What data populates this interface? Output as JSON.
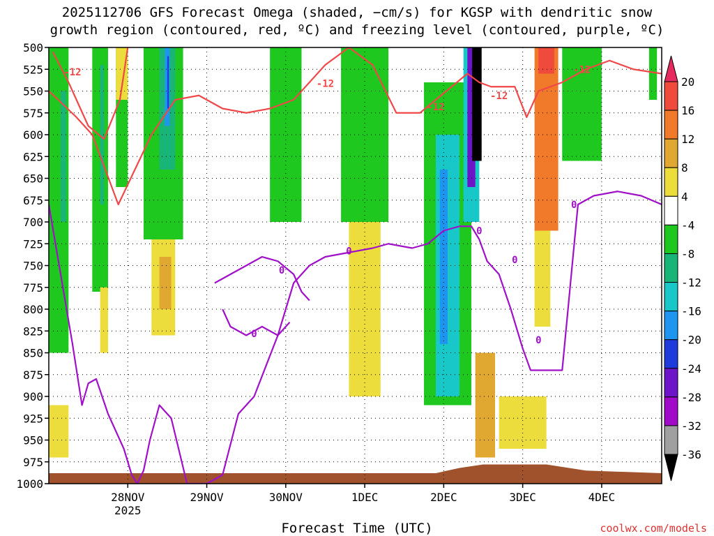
{
  "title_line1": "2025112706 GFS Forecast Omega (shaded, −cm/s) for KGSP with dendritic snow",
  "title_line2": "growth region (contoured, red, ºC) and freezing level (contoured, purple, ºC)",
  "xlabel": "Forecast Time (UTC)",
  "credit": "coolwx.com/models",
  "chart_data": {
    "type": "heatmap",
    "title": "2025112706 GFS Forecast Omega (shaded, −cm/s) for KGSP with dendritic snow growth region (contoured, red, ºC) and freezing level (contoured, purple, ºC)",
    "xlabel": "Forecast Time (UTC)",
    "ylabel": "",
    "y_axis": {
      "ticks": [
        500,
        525,
        550,
        575,
        600,
        625,
        650,
        675,
        700,
        725,
        750,
        775,
        800,
        825,
        850,
        875,
        900,
        925,
        950,
        975,
        1000
      ],
      "range": [
        500,
        1000
      ],
      "inverted": true
    },
    "x_axis": {
      "ticks": [
        {
          "label": "28NOV",
          "sublabel": "2025",
          "x": 1.0
        },
        {
          "label": "29NOV",
          "x": 2.0
        },
        {
          "label": "30NOV",
          "x": 3.0
        },
        {
          "label": "1DEC",
          "x": 4.0
        },
        {
          "label": "2DEC",
          "x": 5.0
        },
        {
          "label": "3DEC",
          "x": 6.0
        },
        {
          "label": "4DEC",
          "x": 7.0
        }
      ],
      "range": [
        0.0,
        7.76
      ]
    },
    "grid": true,
    "colorbar": {
      "labels": [
        "20",
        "16",
        "12",
        "8",
        "4",
        "-4",
        "-8",
        "-12",
        "-16",
        "-20",
        "-24",
        "-28",
        "-32",
        "-36"
      ],
      "colors": [
        "#e62a60",
        "#f04a3c",
        "#f07a2a",
        "#e0a830",
        "#ecdc3c",
        "#ffffff",
        "#1ec81e",
        "#18b478",
        "#18c8c8",
        "#1e96f0",
        "#1e3cdc",
        "#6e14c8",
        "#a00ac8",
        "#a0a0a0",
        "#000000"
      ]
    },
    "omega_regions": [
      {
        "x": [
          0.0,
          0.25
        ],
        "p": [
          500,
          850
        ],
        "value": -6
      },
      {
        "x": [
          0.15,
          0.22
        ],
        "p": [
          550,
          700
        ],
        "value": -10
      },
      {
        "x": [
          0.55,
          0.75
        ],
        "p": [
          500,
          780
        ],
        "value": -6
      },
      {
        "x": [
          0.65,
          0.7
        ],
        "p": [
          520,
          680
        ],
        "value": -10
      },
      {
        "x": [
          0.85,
          1.0
        ],
        "p": [
          500,
          660
        ],
        "value": -6
      },
      {
        "x": [
          1.2,
          1.7
        ],
        "p": [
          500,
          720
        ],
        "value": -6
      },
      {
        "x": [
          1.4,
          1.6
        ],
        "p": [
          500,
          640
        ],
        "value": -10
      },
      {
        "x": [
          1.47,
          1.53
        ],
        "p": [
          500,
          590
        ],
        "value": -18
      },
      {
        "x": [
          1.5,
          1.52
        ],
        "p": [
          510,
          570
        ],
        "value": -22
      },
      {
        "x": [
          1.3,
          1.6
        ],
        "p": [
          720,
          830
        ],
        "value": 6
      },
      {
        "x": [
          1.4,
          1.55
        ],
        "p": [
          740,
          800
        ],
        "value": 10
      },
      {
        "x": [
          0.65,
          0.75
        ],
        "p": [
          775,
          850
        ],
        "value": 6
      },
      {
        "x": [
          0.0,
          0.25
        ],
        "p": [
          910,
          970
        ],
        "value": 6
      },
      {
        "x": [
          0.85,
          1.0
        ],
        "p": [
          500,
          560
        ],
        "value": 5
      },
      {
        "x": [
          2.8,
          3.2
        ],
        "p": [
          500,
          700
        ],
        "value": -6
      },
      {
        "x": [
          3.7,
          4.3
        ],
        "p": [
          500,
          700
        ],
        "value": -6
      },
      {
        "x": [
          3.8,
          4.2
        ],
        "p": [
          700,
          900
        ],
        "value": 5
      },
      {
        "x": [
          4.75,
          5.35
        ],
        "p": [
          540,
          910
        ],
        "value": -6
      },
      {
        "x": [
          4.9,
          5.2
        ],
        "p": [
          600,
          900
        ],
        "value": -12
      },
      {
        "x": [
          4.95,
          5.05
        ],
        "p": [
          640,
          840
        ],
        "value": -16
      },
      {
        "x": [
          5.25,
          5.45
        ],
        "p": [
          500,
          700
        ],
        "value": -12
      },
      {
        "x": [
          5.3,
          5.4
        ],
        "p": [
          500,
          660
        ],
        "value": -26
      },
      {
        "x": [
          5.36,
          5.48
        ],
        "p": [
          500,
          630
        ],
        "value": -40
      },
      {
        "x": [
          5.4,
          5.65
        ],
        "p": [
          850,
          970
        ],
        "value": 8
      },
      {
        "x": [
          5.7,
          6.3
        ],
        "p": [
          900,
          960
        ],
        "value": 5
      },
      {
        "x": [
          6.15,
          6.45
        ],
        "p": [
          500,
          710
        ],
        "value": 12
      },
      {
        "x": [
          6.2,
          6.4
        ],
        "p": [
          500,
          530
        ],
        "value": 18
      },
      {
        "x": [
          6.5,
          7.0
        ],
        "p": [
          500,
          630
        ],
        "value": -6
      },
      {
        "x": [
          7.6,
          7.7
        ],
        "p": [
          500,
          560
        ],
        "value": -6
      },
      {
        "x": [
          6.15,
          6.35
        ],
        "p": [
          710,
          820
        ],
        "value": 5
      }
    ],
    "series": [
      {
        "name": "-12",
        "color": "#f04848",
        "x": [
          0.0,
          0.12,
          0.35,
          0.55,
          0.88,
          1.3,
          1.6,
          1.9,
          2.2,
          2.5,
          2.8,
          3.1,
          3.5,
          3.8,
          4.1,
          4.4,
          4.7,
          4.9,
          5.1,
          5.3,
          5.45,
          5.6,
          5.9,
          6.05,
          6.2,
          6.5,
          6.8,
          7.1,
          7.4,
          7.76
        ],
        "y": [
          550,
          560,
          580,
          600,
          680,
          600,
          560,
          555,
          570,
          575,
          570,
          560,
          520,
          500,
          520,
          575,
          575,
          560,
          545,
          530,
          540,
          545,
          545,
          580,
          550,
          540,
          525,
          515,
          525,
          530
        ]
      },
      {
        "name": "-12",
        "color": "#f04848",
        "x": [
          0.05,
          0.25,
          0.5,
          0.7,
          0.9,
          1.0
        ],
        "y": [
          505,
          540,
          590,
          605,
          560,
          500
        ]
      },
      {
        "name": "0",
        "color": "#a010c8",
        "x": [
          0.0,
          0.15,
          0.3,
          0.42,
          0.5,
          0.6,
          0.75,
          0.95,
          1.05,
          1.12,
          1.2,
          1.28,
          1.4,
          1.55,
          1.75,
          2.0,
          2.2,
          2.4,
          2.6,
          2.9,
          3.1,
          3.3,
          3.5,
          3.8,
          4.1,
          4.3,
          4.6,
          4.8,
          5.0,
          5.2,
          5.35,
          5.45,
          5.55,
          5.7,
          5.85,
          6.0,
          6.1,
          6.3,
          6.5,
          6.7,
          6.9,
          7.2,
          7.5,
          7.76
        ],
        "y": [
          680,
          760,
          840,
          910,
          885,
          880,
          920,
          960,
          990,
          1000,
          985,
          950,
          910,
          925,
          1000,
          1000,
          990,
          920,
          900,
          830,
          770,
          750,
          740,
          735,
          730,
          725,
          730,
          725,
          710,
          705,
          705,
          720,
          745,
          760,
          800,
          845,
          870,
          870,
          870,
          680,
          670,
          665,
          670,
          680
        ]
      },
      {
        "name": "0",
        "color": "#a010c8",
        "x": [
          2.1,
          2.3,
          2.5,
          2.7,
          2.9,
          3.1,
          3.2,
          3.3
        ],
        "y": [
          770,
          760,
          750,
          740,
          745,
          760,
          780,
          790
        ]
      },
      {
        "name": "0",
        "color": "#a010c8",
        "x": [
          2.2,
          2.3,
          2.5,
          2.7,
          2.9,
          3.05
        ],
        "y": [
          800,
          820,
          830,
          820,
          830,
          815
        ]
      }
    ],
    "annotations": [
      {
        "text": "-12",
        "x": 0.3,
        "y": 528,
        "color": "#f04848"
      },
      {
        "text": "-12",
        "x": 3.5,
        "y": 541,
        "color": "#f04848"
      },
      {
        "text": "-12",
        "x": 4.9,
        "y": 568,
        "color": "#f04848"
      },
      {
        "text": "-12",
        "x": 5.7,
        "y": 555,
        "color": "#f04848"
      },
      {
        "text": "-12",
        "x": 6.75,
        "y": 525,
        "color": "#f04848"
      },
      {
        "text": "0",
        "x": 2.6,
        "y": 828,
        "color": "#a010c8"
      },
      {
        "text": "0",
        "x": 2.95,
        "y": 755,
        "color": "#a010c8"
      },
      {
        "text": "0",
        "x": 3.8,
        "y": 733,
        "color": "#a010c8"
      },
      {
        "text": "0",
        "x": 5.45,
        "y": 710,
        "color": "#a010c8"
      },
      {
        "text": "0",
        "x": 5.9,
        "y": 743,
        "color": "#a010c8"
      },
      {
        "text": "0",
        "x": 6.2,
        "y": 835,
        "color": "#a010c8"
      },
      {
        "text": "0",
        "x": 6.65,
        "y": 680,
        "color": "#a010c8"
      }
    ],
    "terrain": {
      "color": "#a0522d",
      "x": [
        0.0,
        4.9,
        5.2,
        5.5,
        6.3,
        6.8,
        7.76
      ],
      "p": [
        988,
        988,
        982,
        978,
        978,
        985,
        988
      ]
    },
    "legend": "right colorbar"
  }
}
